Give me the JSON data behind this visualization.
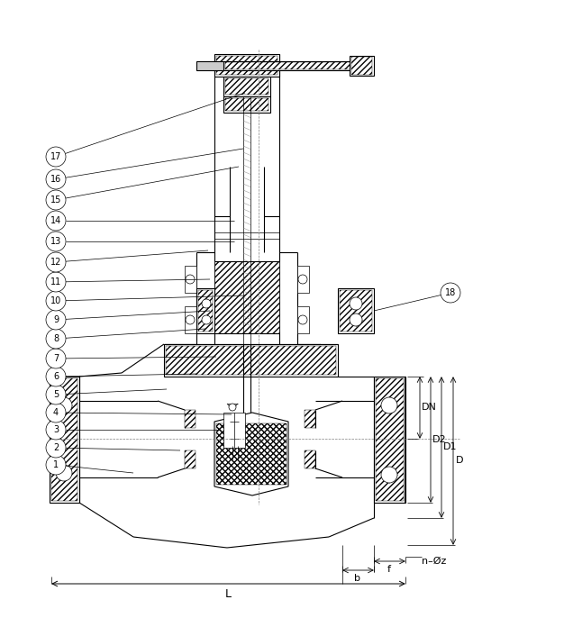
{
  "bg_color": "#ffffff",
  "line_color": "#000000",
  "fig_width": 6.26,
  "fig_height": 6.96,
  "dpi": 100,
  "lw_thin": 0.5,
  "lw_med": 0.8,
  "lw_thick": 1.3,
  "callouts": [
    [
      1,
      62,
      516,
      148,
      525
    ],
    [
      2,
      62,
      497,
      200,
      500
    ],
    [
      3,
      62,
      477,
      245,
      477
    ],
    [
      4,
      62,
      458,
      257,
      460
    ],
    [
      5,
      62,
      438,
      185,
      432
    ],
    [
      6,
      62,
      418,
      218,
      415
    ],
    [
      7,
      62,
      398,
      240,
      396
    ],
    [
      8,
      62,
      376,
      228,
      365
    ],
    [
      9,
      62,
      355,
      233,
      345
    ],
    [
      10,
      62,
      334,
      272,
      328
    ],
    [
      11,
      62,
      313,
      233,
      310
    ],
    [
      12,
      62,
      291,
      231,
      278
    ],
    [
      13,
      62,
      268,
      260,
      268
    ],
    [
      14,
      62,
      245,
      260,
      245
    ],
    [
      15,
      62,
      222,
      265,
      185
    ],
    [
      16,
      62,
      199,
      270,
      165
    ],
    [
      17,
      62,
      174,
      272,
      103
    ],
    [
      18,
      500,
      325,
      415,
      345
    ]
  ]
}
